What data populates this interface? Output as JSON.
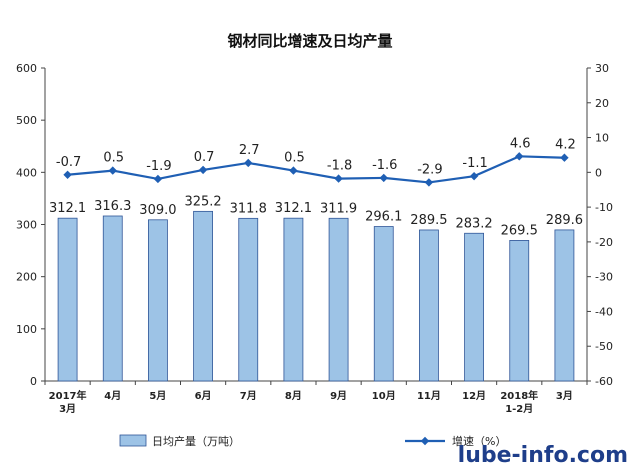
{
  "chart_data": {
    "type": "bar",
    "title": "钢材同比增速及日均产量",
    "categories": [
      "2017年\n3月",
      "4月",
      "5月",
      "6月",
      "7月",
      "8月",
      "9月",
      "10月",
      "11月",
      "12月",
      "2018年\n1-2月",
      "3月"
    ],
    "series": [
      {
        "name": "日均产量（万吨）",
        "type": "bar",
        "axis": "left",
        "values": [
          312.1,
          316.3,
          309.0,
          325.2,
          311.8,
          312.1,
          311.9,
          296.1,
          289.5,
          283.2,
          269.5,
          289.6
        ],
        "labels": [
          "312.1",
          "316.3",
          "309.0",
          "325.2",
          "311.8",
          "312.1",
          "311.9",
          "296.1",
          "289.5",
          "283.2",
          "269.5",
          "289.6"
        ]
      },
      {
        "name": "增速（%）",
        "type": "line",
        "axis": "right",
        "values": [
          -0.7,
          0.5,
          -1.9,
          0.7,
          2.7,
          0.5,
          -1.8,
          -1.6,
          -2.9,
          -1.1,
          4.6,
          4.2
        ],
        "labels": [
          "-0.7",
          "0.5",
          "-1.9",
          "0.7",
          "2.7",
          "0.5",
          "-1.8",
          "-1.6",
          "-2.9",
          "-1.1",
          "4.6",
          "4.2"
        ]
      }
    ],
    "y_left": {
      "min": 0,
      "max": 600,
      "ticks": [
        "0",
        "100",
        "200",
        "300",
        "400",
        "500",
        "600"
      ]
    },
    "y_right": {
      "min": -60,
      "max": 30,
      "ticks": [
        "-60",
        "-50",
        "-40",
        "-30",
        "-20",
        "-10",
        "0",
        "10",
        "20",
        "30"
      ]
    },
    "grid": false,
    "legend": "bottom",
    "colors": {
      "bar": "#9dc3e6",
      "bar_border": "#2f5597",
      "line": "#1f5fb4"
    }
  },
  "watermark": "lube-info.com"
}
